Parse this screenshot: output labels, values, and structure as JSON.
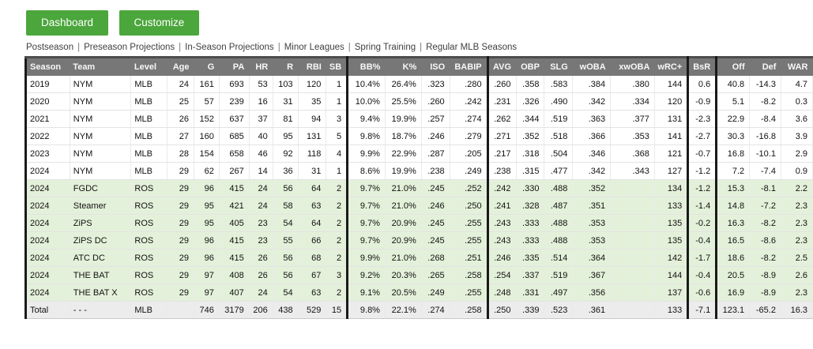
{
  "toolbar": {
    "dashboard_label": "Dashboard",
    "customize_label": "Customize"
  },
  "nav": {
    "separator": "|",
    "items": [
      "Postseason",
      "Preseason Projections",
      "In-Season Projections",
      "Minor Leagues",
      "Spring Training",
      "Regular MLB Seasons"
    ]
  },
  "colors": {
    "button_green": "#4ba63c",
    "header_gray": "#777777",
    "projection_row_green": "#e4f1da",
    "total_row_gray": "#ececec",
    "divider_black": "#1a1a1a"
  },
  "table": {
    "columns": [
      {
        "key": "season",
        "label": "Season"
      },
      {
        "key": "team",
        "label": "Team"
      },
      {
        "key": "level",
        "label": "Level"
      },
      {
        "key": "age",
        "label": "Age"
      },
      {
        "key": "g",
        "label": "G"
      },
      {
        "key": "pa",
        "label": "PA"
      },
      {
        "key": "hr",
        "label": "HR"
      },
      {
        "key": "r",
        "label": "R"
      },
      {
        "key": "rbi",
        "label": "RBI"
      },
      {
        "key": "sb",
        "label": "SB"
      },
      {
        "key": "bb_pct",
        "label": "BB%"
      },
      {
        "key": "k_pct",
        "label": "K%"
      },
      {
        "key": "iso",
        "label": "ISO"
      },
      {
        "key": "babip",
        "label": "BABIP"
      },
      {
        "key": "avg",
        "label": "AVG"
      },
      {
        "key": "obp",
        "label": "OBP"
      },
      {
        "key": "slg",
        "label": "SLG"
      },
      {
        "key": "woba",
        "label": "wOBA"
      },
      {
        "key": "xwoba",
        "label": "xwOBA"
      },
      {
        "key": "wrc_plus",
        "label": "wRC+"
      },
      {
        "key": "bsr",
        "label": "BsR"
      },
      {
        "key": "off",
        "label": "Off"
      },
      {
        "key": "def",
        "label": "Def"
      },
      {
        "key": "war",
        "label": "WAR"
      }
    ],
    "rows": [
      {
        "style": "mlb",
        "cells": [
          "2019",
          "NYM",
          "MLB",
          "24",
          "161",
          "693",
          "53",
          "103",
          "120",
          "1",
          "10.4%",
          "26.4%",
          ".323",
          ".280",
          ".260",
          ".358",
          ".583",
          ".384",
          ".380",
          "144",
          "0.6",
          "40.8",
          "-14.3",
          "4.7"
        ]
      },
      {
        "style": "mlb",
        "cells": [
          "2020",
          "NYM",
          "MLB",
          "25",
          "57",
          "239",
          "16",
          "31",
          "35",
          "1",
          "10.0%",
          "25.5%",
          ".260",
          ".242",
          ".231",
          ".326",
          ".490",
          ".342",
          ".334",
          "120",
          "-0.9",
          "5.1",
          "-8.2",
          "0.3"
        ]
      },
      {
        "style": "mlb",
        "cells": [
          "2021",
          "NYM",
          "MLB",
          "26",
          "152",
          "637",
          "37",
          "81",
          "94",
          "3",
          "9.4%",
          "19.9%",
          ".257",
          ".274",
          ".262",
          ".344",
          ".519",
          ".363",
          ".377",
          "131",
          "-2.3",
          "22.9",
          "-8.4",
          "3.6"
        ]
      },
      {
        "style": "mlb",
        "cells": [
          "2022",
          "NYM",
          "MLB",
          "27",
          "160",
          "685",
          "40",
          "95",
          "131",
          "5",
          "9.8%",
          "18.7%",
          ".246",
          ".279",
          ".271",
          ".352",
          ".518",
          ".366",
          ".353",
          "141",
          "-2.7",
          "30.3",
          "-16.8",
          "3.9"
        ]
      },
      {
        "style": "mlb",
        "cells": [
          "2023",
          "NYM",
          "MLB",
          "28",
          "154",
          "658",
          "46",
          "92",
          "118",
          "4",
          "9.9%",
          "22.9%",
          ".287",
          ".205",
          ".217",
          ".318",
          ".504",
          ".346",
          ".368",
          "121",
          "-0.7",
          "16.8",
          "-10.1",
          "2.9"
        ]
      },
      {
        "style": "mlb",
        "cells": [
          "2024",
          "NYM",
          "MLB",
          "29",
          "62",
          "267",
          "14",
          "36",
          "31",
          "1",
          "8.6%",
          "19.9%",
          ".238",
          ".249",
          ".238",
          ".315",
          ".477",
          ".342",
          ".343",
          "127",
          "-1.2",
          "7.2",
          "-7.4",
          "0.9"
        ]
      },
      {
        "style": "proj",
        "cells": [
          "2024",
          "FGDC",
          "ROS",
          "29",
          "96",
          "415",
          "24",
          "56",
          "64",
          "2",
          "9.7%",
          "21.0%",
          ".245",
          ".252",
          ".242",
          ".330",
          ".488",
          ".352",
          "",
          "134",
          "-1.2",
          "15.3",
          "-8.1",
          "2.2"
        ]
      },
      {
        "style": "proj",
        "cells": [
          "2024",
          "Steamer",
          "ROS",
          "29",
          "95",
          "421",
          "24",
          "58",
          "63",
          "2",
          "9.7%",
          "21.0%",
          ".246",
          ".250",
          ".241",
          ".328",
          ".487",
          ".351",
          "",
          "133",
          "-1.4",
          "14.8",
          "-7.2",
          "2.3"
        ]
      },
      {
        "style": "proj",
        "cells": [
          "2024",
          "ZiPS",
          "ROS",
          "29",
          "95",
          "405",
          "23",
          "54",
          "64",
          "2",
          "9.7%",
          "20.9%",
          ".245",
          ".255",
          ".243",
          ".333",
          ".488",
          ".353",
          "",
          "135",
          "-0.2",
          "16.3",
          "-8.2",
          "2.3"
        ]
      },
      {
        "style": "proj",
        "cells": [
          "2024",
          "ZiPS DC",
          "ROS",
          "29",
          "96",
          "415",
          "23",
          "55",
          "66",
          "2",
          "9.7%",
          "20.9%",
          ".245",
          ".255",
          ".243",
          ".333",
          ".488",
          ".353",
          "",
          "135",
          "-0.4",
          "16.5",
          "-8.6",
          "2.3"
        ]
      },
      {
        "style": "proj",
        "cells": [
          "2024",
          "ATC DC",
          "ROS",
          "29",
          "96",
          "415",
          "26",
          "56",
          "68",
          "2",
          "9.9%",
          "21.0%",
          ".268",
          ".251",
          ".246",
          ".335",
          ".514",
          ".364",
          "",
          "142",
          "-1.7",
          "18.6",
          "-8.2",
          "2.5"
        ]
      },
      {
        "style": "proj",
        "cells": [
          "2024",
          "THE BAT",
          "ROS",
          "29",
          "97",
          "408",
          "26",
          "56",
          "67",
          "3",
          "9.2%",
          "20.3%",
          ".265",
          ".258",
          ".254",
          ".337",
          ".519",
          ".367",
          "",
          "144",
          "-0.4",
          "20.5",
          "-8.9",
          "2.6"
        ]
      },
      {
        "style": "proj",
        "cells": [
          "2024",
          "THE BAT X",
          "ROS",
          "29",
          "97",
          "407",
          "24",
          "54",
          "63",
          "2",
          "9.1%",
          "20.5%",
          ".249",
          ".255",
          ".248",
          ".331",
          ".497",
          ".356",
          "",
          "137",
          "-0.6",
          "16.9",
          "-8.9",
          "2.3"
        ]
      },
      {
        "style": "total",
        "cells": [
          "Total",
          "- - -",
          "MLB",
          "",
          "746",
          "3179",
          "206",
          "438",
          "529",
          "15",
          "9.8%",
          "22.1%",
          ".274",
          ".258",
          ".250",
          ".339",
          ".523",
          ".361",
          "",
          "133",
          "-7.1",
          "123.1",
          "-65.2",
          "16.3"
        ]
      }
    ]
  }
}
